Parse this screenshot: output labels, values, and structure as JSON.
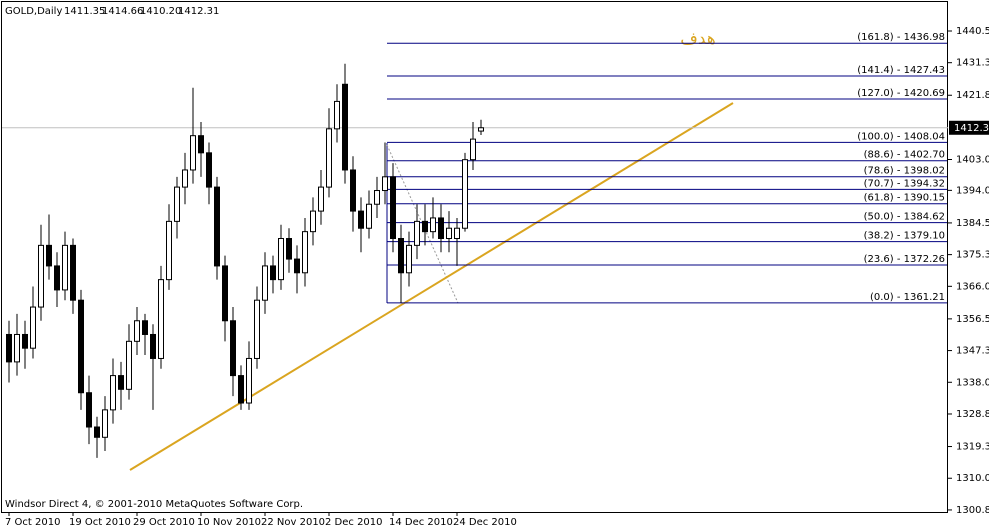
{
  "chart_data": {
    "type": "candlestick",
    "title": "GOLD,Daily",
    "footer": "Windsor Direct 4, © 2001-2010 MetaQuotes Software Corp.",
    "annotation": "هدف",
    "categories": [
      "7 Oct 2010",
      null,
      null,
      null,
      null,
      null,
      null,
      null,
      "19 Oct 2010",
      null,
      null,
      null,
      null,
      null,
      null,
      null,
      "29 Oct 2010",
      null,
      null,
      null,
      null,
      null,
      null,
      null,
      "10 Nov 2010",
      null,
      null,
      null,
      null,
      null,
      null,
      null,
      "22 Nov 2010",
      null,
      null,
      null,
      null,
      null,
      null,
      null,
      "2 Dec 2010",
      null,
      null,
      null,
      null,
      null,
      null,
      null,
      "14 Dec 2010",
      null,
      null,
      null,
      null,
      null,
      null,
      null,
      "24 Dec 2010",
      null,
      null,
      null
    ],
    "open": [
      1352,
      1344,
      1352,
      1348,
      1360,
      1378,
      1372,
      1365,
      1378,
      1362,
      1335,
      1325,
      1322,
      1330,
      1340,
      1336,
      1350,
      1356,
      1352,
      1345,
      1368,
      1385,
      1395,
      1400,
      1410,
      1405,
      1395,
      1372,
      1356,
      1340,
      1332,
      1345,
      1362,
      1372,
      1368,
      1380,
      1374,
      1370,
      1382,
      1388,
      1395,
      1412,
      1425,
      1400,
      1388,
      1383,
      1390,
      1394,
      1398,
      1380,
      1370,
      1378,
      1385,
      1382,
      1386,
      1380,
      1380,
      1383,
      1403,
      1411.35
    ],
    "high": [
      1356,
      1358,
      1356,
      1366,
      1384,
      1387,
      1376,
      1382,
      1380,
      1365,
      1340,
      1328,
      1334,
      1345,
      1344,
      1355,
      1360,
      1358,
      1355,
      1372,
      1390,
      1398,
      1405,
      1424,
      1414,
      1408,
      1398,
      1375,
      1360,
      1343,
      1350,
      1366,
      1376,
      1375,
      1384,
      1383,
      1378,
      1386,
      1392,
      1400,
      1418,
      1425,
      1431,
      1404,
      1392,
      1394,
      1398,
      1408,
      1402,
      1384,
      1382,
      1390,
      1390,
      1392,
      1390,
      1388,
      1386,
      1405,
      1414,
      1414.66
    ],
    "low": [
      1338,
      1340,
      1342,
      1345,
      1356,
      1368,
      1360,
      1362,
      1358,
      1330,
      1320,
      1316,
      1318,
      1326,
      1330,
      1333,
      1346,
      1346,
      1330,
      1342,
      1365,
      1380,
      1390,
      1396,
      1398,
      1390,
      1368,
      1350,
      1334,
      1330,
      1330,
      1342,
      1358,
      1364,
      1365,
      1370,
      1364,
      1366,
      1378,
      1384,
      1392,
      1408,
      1396,
      1382,
      1376,
      1380,
      1386,
      1390,
      1376,
      1361.21,
      1366,
      1374,
      1378,
      1380,
      1376,
      1376,
      1372,
      1382,
      1400,
      1410.2
    ],
    "close": [
      1344,
      1352,
      1348,
      1360,
      1378,
      1372,
      1365,
      1378,
      1362,
      1335,
      1325,
      1322,
      1330,
      1340,
      1336,
      1350,
      1356,
      1352,
      1345,
      1368,
      1385,
      1395,
      1400,
      1410,
      1405,
      1395,
      1372,
      1356,
      1340,
      1332,
      1345,
      1362,
      1372,
      1368,
      1380,
      1374,
      1370,
      1382,
      1388,
      1395,
      1412,
      1420,
      1400,
      1388,
      1383,
      1390,
      1394,
      1398,
      1380,
      1370,
      1378,
      1385,
      1382,
      1386,
      1380,
      1383,
      1383,
      1403,
      1409,
      1412.31
    ],
    "header_values": [
      {
        "value": 1411.35,
        "label": "1411.35"
      },
      {
        "value": 1414.66,
        "label": "1414.66"
      },
      {
        "value": 1410.2,
        "label": "1410.20"
      },
      {
        "value": 1412.31,
        "label": "1412.31"
      }
    ],
    "ylim": [
      1300.2,
      1449.3
    ],
    "yticks": [
      1440.55,
      {
        "value": 1431.3,
        "label": "1431.30"
      },
      {
        "value": 1421.8,
        "label": "1421.80"
      },
      1403.05,
      1394.05,
      1384.55,
      {
        "value": 1375.3,
        "label": "1375.30"
      },
      1366.05,
      1356.55,
      {
        "value": 1347.3,
        "label": "1347.30"
      },
      1338.05,
      {
        "value": 1328.8,
        "label": "1328.80"
      },
      {
        "value": 1319.3,
        "label": "1319.30"
      },
      1310.05,
      {
        "value": 1300.8,
        "label": "1300.80"
      }
    ],
    "fib_levels": [
      {
        "value": 1436.98,
        "label": "(161.8) - 1436.98"
      },
      {
        "value": 1427.43,
        "label": "(141.4) - 1427.43"
      },
      {
        "value": 1420.69,
        "label": "(127.0) - 1420.69"
      },
      {
        "value": 1408.04,
        "label": "(100.0) - 1408.04"
      },
      {
        "value": 1402.7,
        "label": "(88.6) - 1402.70"
      },
      {
        "value": 1398.02,
        "label": "(78.6) - 1398.02"
      },
      {
        "value": 1394.32,
        "label": "(70.7) - 1394.32"
      },
      {
        "value": 1390.15,
        "label": "(61.8) - 1390.15"
      },
      {
        "value": 1384.62,
        "label": "(50.0) - 1384.62"
      },
      {
        "value": 1379.1,
        "label": "(38.2) - 1379.10"
      },
      {
        "value": 1372.26,
        "label": "(23.6) - 1372.26"
      },
      {
        "value": 1361.21,
        "label": "(0.0) - 1361.21"
      }
    ],
    "fib_color": "#000080",
    "trendline_color": "#daa520"
  }
}
